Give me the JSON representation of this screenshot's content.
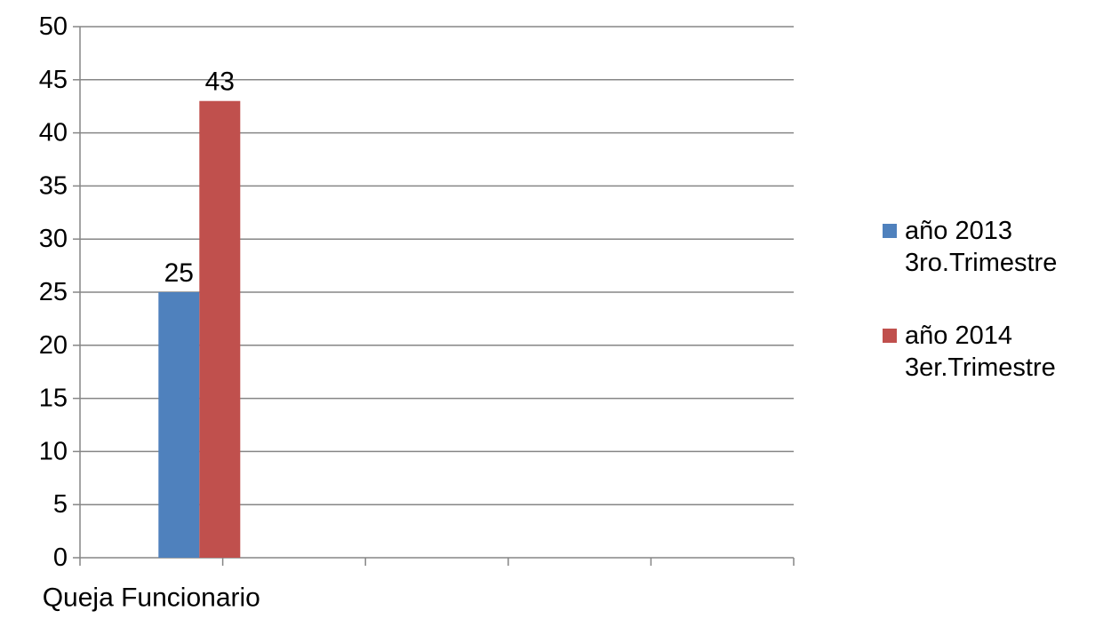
{
  "chart_data": {
    "type": "bar",
    "title": "",
    "xlabel": "",
    "ylabel": "",
    "ylim": [
      0,
      50
    ],
    "ytick_step": 5,
    "categories": [
      "Queja Funcionario",
      "",
      "",
      "",
      ""
    ],
    "series": [
      {
        "name_lines": [
          "año 2013",
          "3ro.Trimestre"
        ],
        "color": "#4f81bd",
        "values": [
          25,
          null,
          null,
          null,
          null
        ]
      },
      {
        "name_lines": [
          "año 2014",
          "3er.Trimestre"
        ],
        "color": "#c0504d",
        "values": [
          43,
          null,
          null,
          null,
          null
        ]
      }
    ],
    "data_labels": true,
    "grid": true,
    "legend_position": "right"
  }
}
